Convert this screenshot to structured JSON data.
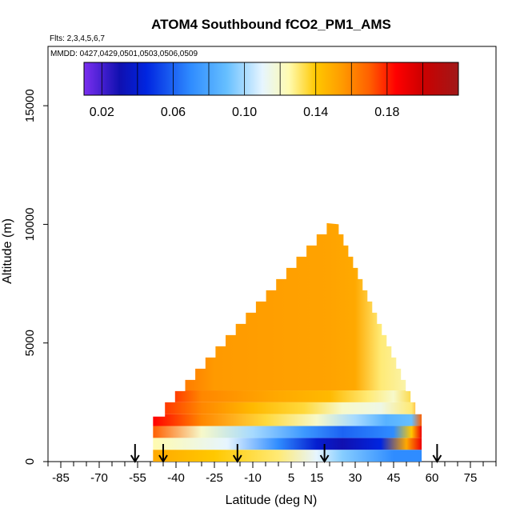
{
  "chart_data": {
    "type": "heatmap",
    "title": "ATOM4 Southbound fCO2_PM1_AMS",
    "subtitle_flights": "Flts: 2,3,4,5,6,7",
    "subtitle_dates": "MMDD: 0427,0429,0501,0503,0506,0509",
    "xlabel": "Latitude (deg N)",
    "ylabel": "Altitude (m)",
    "xlim": [
      -90,
      85
    ],
    "ylim": [
      0,
      17500
    ],
    "x_ticks": [
      -85,
      -70,
      -55,
      -40,
      -25,
      -10,
      5,
      15,
      30,
      45,
      60,
      75
    ],
    "x_tick_labels": [
      "-85",
      "-70",
      "-55",
      "-40",
      "-25",
      "-10",
      "5",
      "15",
      "30",
      "45",
      "60",
      "75"
    ],
    "x_minor_step": 5,
    "y_ticks": [
      0,
      5000,
      10000,
      15000
    ],
    "y_tick_labels": [
      "0",
      "5000",
      "10000",
      "15000"
    ],
    "colorbar": {
      "range": [
        0.01,
        0.22
      ],
      "ticks": [
        0.02,
        0.06,
        0.1,
        0.14,
        0.18
      ],
      "tick_labels": [
        "0.02",
        "0.06",
        "0.10",
        "0.14",
        "0.18"
      ],
      "stops": [
        {
          "v": 0.01,
          "c": "#7b2ff0"
        },
        {
          "v": 0.03,
          "c": "#1010b0"
        },
        {
          "v": 0.045,
          "c": "#0025e0"
        },
        {
          "v": 0.07,
          "c": "#2f8cff"
        },
        {
          "v": 0.09,
          "c": "#66bfff"
        },
        {
          "v": 0.11,
          "c": "#e6f5ff"
        },
        {
          "v": 0.125,
          "c": "#fffbb0"
        },
        {
          "v": 0.14,
          "c": "#ffc800"
        },
        {
          "v": 0.155,
          "c": "#ff9a00"
        },
        {
          "v": 0.17,
          "c": "#ff6000"
        },
        {
          "v": 0.185,
          "c": "#ff0000"
        },
        {
          "v": 0.2,
          "c": "#cc0000"
        },
        {
          "v": 0.22,
          "c": "#a01818"
        }
      ]
    },
    "arrows_latitude": [
      -56,
      -45,
      -16,
      18,
      62
    ],
    "envelope": {
      "lat_start": -49,
      "lat_end": 56,
      "apex_lat": 22,
      "apex_alt": 10000,
      "base_alt": 2500
    },
    "layers": [
      {
        "alt_bottom": 0,
        "alt_top": 500,
        "values": [
          [
            -49,
            0.15
          ],
          [
            -25,
            0.14
          ],
          [
            0,
            0.13
          ],
          [
            15,
            0.11
          ],
          [
            25,
            0.095
          ],
          [
            45,
            0.07
          ]
        ]
      },
      {
        "alt_bottom": 500,
        "alt_top": 1000,
        "values": [
          [
            -49,
            0.125
          ],
          [
            -20,
            0.11
          ],
          [
            0,
            0.07
          ],
          [
            15,
            0.04
          ],
          [
            25,
            0.03
          ],
          [
            40,
            0.045
          ],
          [
            50,
            0.15
          ],
          [
            56,
            0.19
          ]
        ]
      },
      {
        "alt_bottom": 1000,
        "alt_top": 1500,
        "values": [
          [
            -49,
            0.17
          ],
          [
            -30,
            0.12
          ],
          [
            -10,
            0.1
          ],
          [
            10,
            0.075
          ],
          [
            25,
            0.06
          ],
          [
            45,
            0.07
          ],
          [
            52,
            0.14
          ],
          [
            56,
            0.19
          ]
        ]
      },
      {
        "alt_bottom": 1500,
        "alt_top": 2000,
        "values": [
          [
            -49,
            0.185
          ],
          [
            -30,
            0.16
          ],
          [
            -5,
            0.135
          ],
          [
            15,
            0.12
          ],
          [
            30,
            0.1
          ],
          [
            42,
            0.085
          ],
          [
            52,
            0.09
          ],
          [
            56,
            0.17
          ]
        ]
      },
      {
        "alt_bottom": 2000,
        "alt_top": 2500,
        "values": [
          [
            -49,
            0.18
          ],
          [
            -30,
            0.16
          ],
          [
            -10,
            0.145
          ],
          [
            10,
            0.135
          ],
          [
            25,
            0.12
          ],
          [
            40,
            0.115
          ],
          [
            52,
            0.13
          ],
          [
            56,
            0.16
          ]
        ]
      },
      {
        "alt_bottom": 2500,
        "alt_top": 3000,
        "values": [
          [
            -49,
            0.185
          ],
          [
            -30,
            0.16
          ],
          [
            0,
            0.15
          ],
          [
            20,
            0.145
          ],
          [
            35,
            0.13
          ],
          [
            45,
            0.12
          ],
          [
            56,
            0.14
          ]
        ]
      },
      {
        "alt_bottom": 3000,
        "alt_top": 10500,
        "values": [
          [
            -49,
            0.185
          ],
          [
            -40,
            0.165
          ],
          [
            -25,
            0.155
          ],
          [
            20,
            0.152
          ],
          [
            30,
            0.15
          ],
          [
            40,
            0.13
          ],
          [
            56,
            0.12
          ]
        ]
      }
    ]
  }
}
